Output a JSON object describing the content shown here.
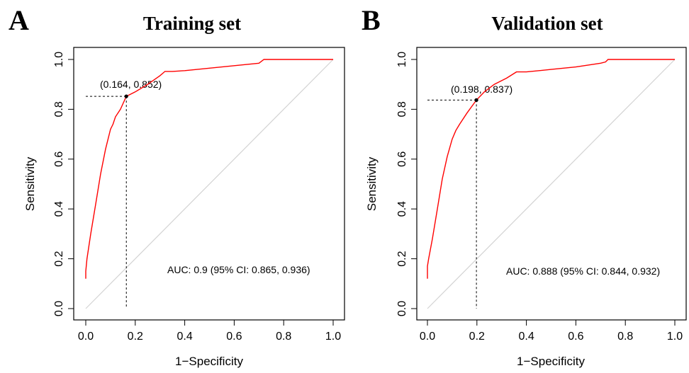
{
  "chart_data": [
    {
      "type": "line",
      "panel_label": "A",
      "title": "Training set",
      "xlabel": "1−Specificity",
      "ylabel": "Sensitivity",
      "xlim": [
        0.0,
        1.0
      ],
      "ylim": [
        0.0,
        1.0
      ],
      "x_ticks": [
        "0.0",
        "0.2",
        "0.4",
        "0.6",
        "0.8",
        "1.0"
      ],
      "y_ticks": [
        "0.0",
        "0.2",
        "0.4",
        "0.6",
        "0.8",
        "1.0"
      ],
      "grid": false,
      "series": [
        {
          "color": "#ff0000",
          "x": [
            0.0,
            0.0,
            0.005,
            0.02,
            0.04,
            0.06,
            0.08,
            0.1,
            0.11,
            0.12,
            0.14,
            0.164,
            0.2,
            0.25,
            0.3,
            0.32,
            0.35,
            0.4,
            0.5,
            0.6,
            0.7,
            0.72,
            0.8,
            0.9,
            1.0
          ],
          "y": [
            0.12,
            0.15,
            0.2,
            0.3,
            0.42,
            0.54,
            0.64,
            0.72,
            0.74,
            0.77,
            0.8,
            0.852,
            0.87,
            0.9,
            0.935,
            0.952,
            0.952,
            0.955,
            0.965,
            0.975,
            0.985,
            1.0,
            1.0,
            1.0,
            1.0
          ]
        }
      ],
      "reference_line": {
        "color": "#d3d3d3",
        "from": [
          0,
          0
        ],
        "to": [
          1,
          1
        ]
      },
      "best_point": {
        "x": 0.164,
        "y": 0.852,
        "label": "(0.164, 0.852)"
      },
      "auc_text": "AUC: 0.9 (95% CI: 0.865, 0.936)"
    },
    {
      "type": "line",
      "panel_label": "B",
      "title": "Validation set",
      "xlabel": "1−Specificity",
      "ylabel": "Sensitivity",
      "xlim": [
        0.0,
        1.0
      ],
      "ylim": [
        0.0,
        1.0
      ],
      "x_ticks": [
        "0.0",
        "0.2",
        "0.4",
        "0.6",
        "0.8",
        "1.0"
      ],
      "y_ticks": [
        "0.0",
        "0.2",
        "0.4",
        "0.6",
        "0.8",
        "1.0"
      ],
      "grid": false,
      "series": [
        {
          "color": "#ff0000",
          "x": [
            0.0,
            0.0,
            0.005,
            0.02,
            0.04,
            0.06,
            0.08,
            0.1,
            0.115,
            0.13,
            0.16,
            0.198,
            0.23,
            0.27,
            0.32,
            0.36,
            0.4,
            0.5,
            0.6,
            0.7,
            0.72,
            0.73,
            0.8,
            0.9,
            1.0
          ],
          "y": [
            0.12,
            0.17,
            0.2,
            0.28,
            0.4,
            0.52,
            0.61,
            0.68,
            0.715,
            0.74,
            0.785,
            0.837,
            0.87,
            0.9,
            0.925,
            0.95,
            0.95,
            0.96,
            0.97,
            0.985,
            0.99,
            1.0,
            1.0,
            1.0,
            1.0
          ]
        }
      ],
      "reference_line": {
        "color": "#d3d3d3",
        "from": [
          0,
          0
        ],
        "to": [
          1,
          1
        ]
      },
      "best_point": {
        "x": 0.198,
        "y": 0.837,
        "label": "(0.198, 0.837)"
      },
      "auc_text": "AUC: 0.888 (95% CI: 0.844, 0.932)"
    }
  ]
}
